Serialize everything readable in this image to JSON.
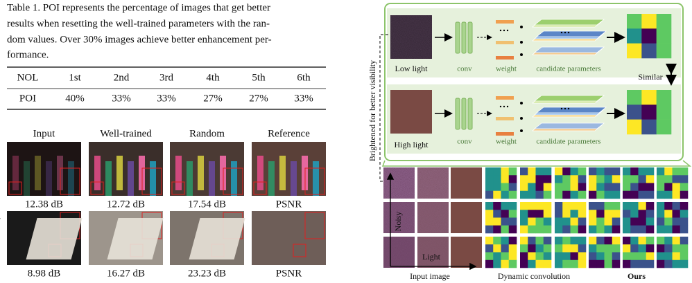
{
  "table": {
    "caption": [
      "Table 1. POI represents the percentage of images that get better",
      "results when resetting the well-trained parameters with the ran-",
      "dom values. Over 30% images achieve better enhancement per-",
      "formance."
    ],
    "header": [
      "NOL",
      "1st",
      "2nd",
      "3rd",
      "4th",
      "5th",
      "6th"
    ],
    "rows": [
      [
        "POI",
        "40%",
        "33%",
        "33%",
        "27%",
        "27%",
        "33%"
      ]
    ]
  },
  "image_grid": {
    "columns": [
      "Input",
      "Well-trained",
      "Random",
      "Reference"
    ],
    "psnr_rows": [
      [
        "12.38 dB",
        "12.72 dB",
        "17.54 dB",
        "PSNR"
      ],
      [
        "8.98 dB",
        "16.27 dB",
        "23.23 dB",
        "PSNR"
      ]
    ]
  },
  "diagram": {
    "low_light": "Low light",
    "high_light": "High light",
    "conv": "conv",
    "weight": "weight",
    "candidate": "candidate parameters",
    "similar": "Similar",
    "side_note": "Brightened for better visibility",
    "axis_noisy": "Noisy",
    "axis_light": "Light",
    "footer": [
      "Input image",
      "Dynamic convolution",
      "Ours"
    ]
  }
}
